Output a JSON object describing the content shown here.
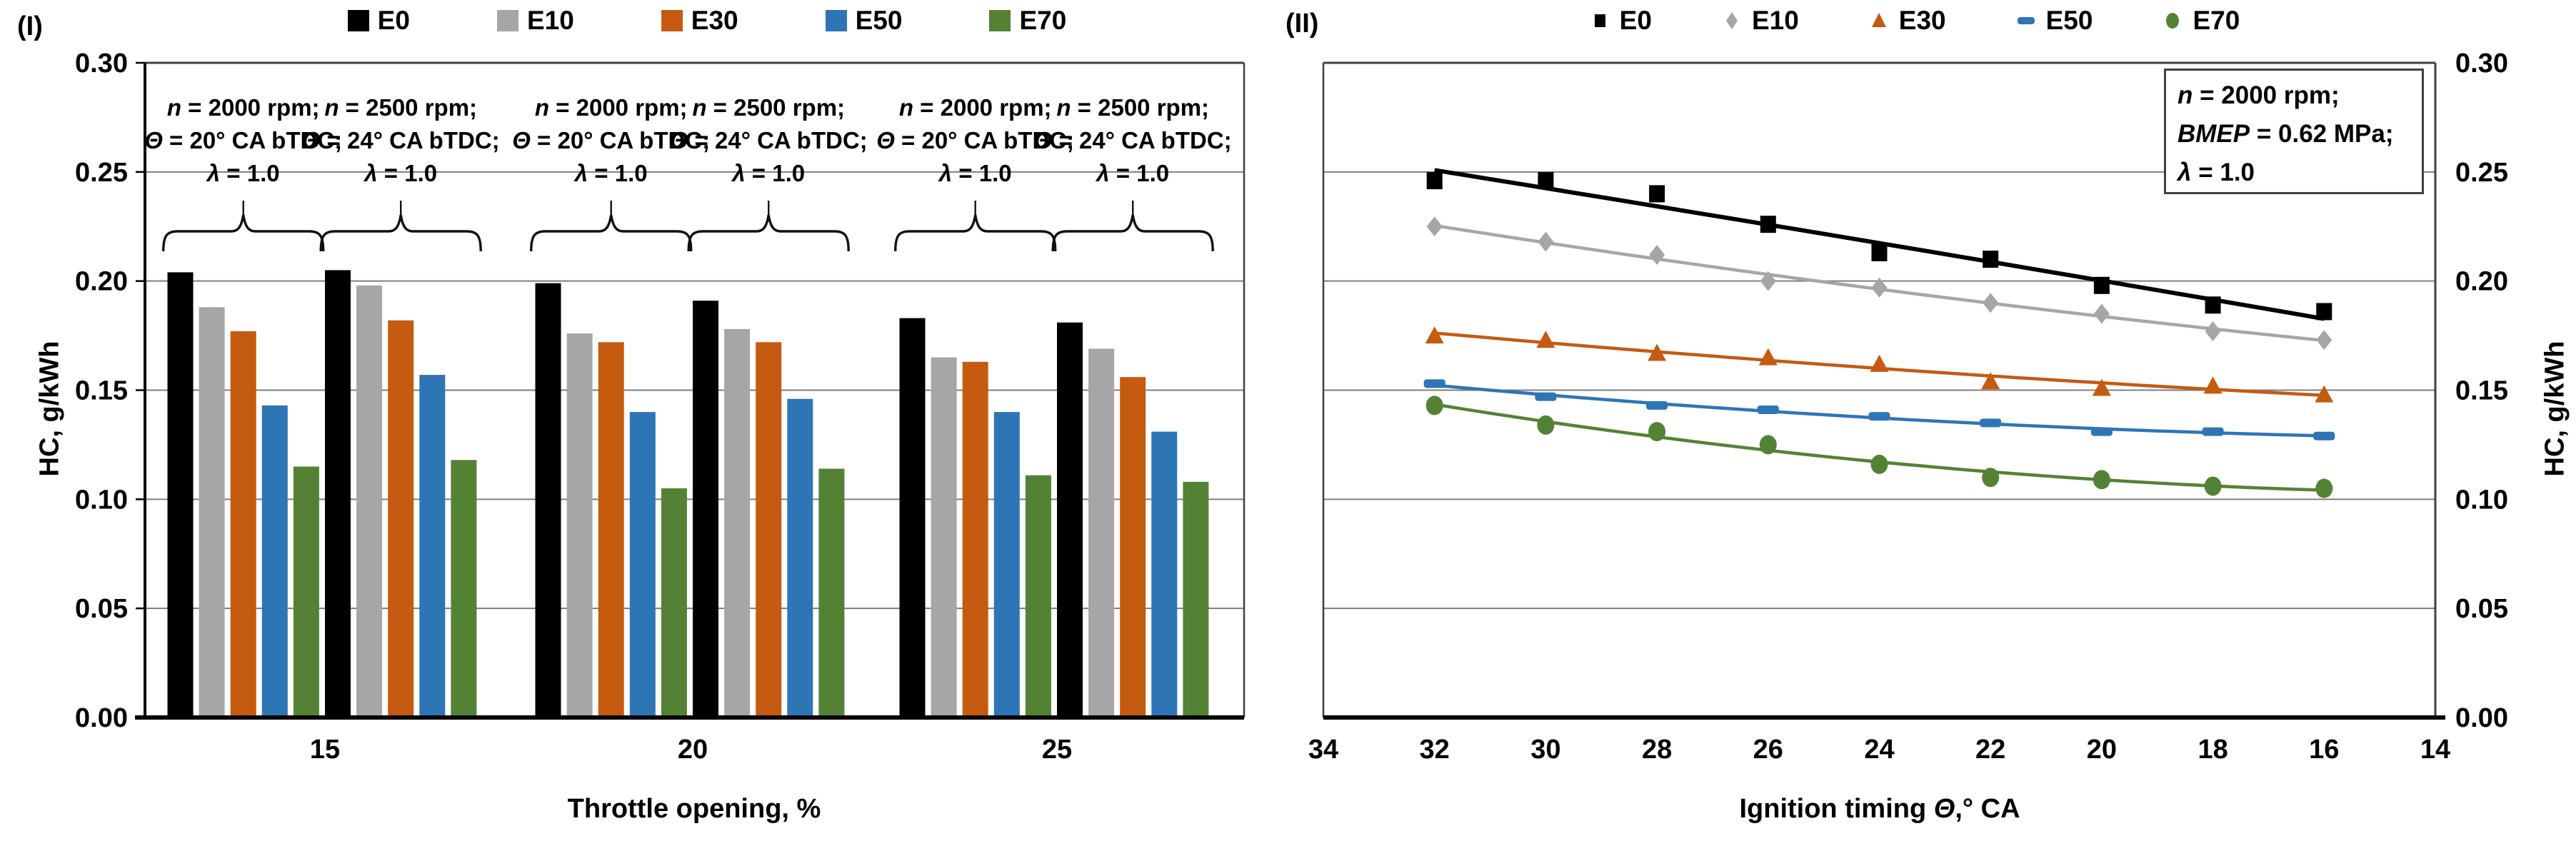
{
  "panel1": {
    "label": "(I)",
    "y_axis": {
      "title": "HC, g/kWh"
    },
    "x_axis": {
      "title": "Throttle opening, %"
    },
    "annotations": [
      {
        "l1v": "n",
        "l1r": " = 2000 rpm;",
        "l2v": "Θ",
        "l2r": " = 20° CA bTDC;",
        "l3v": "λ",
        "l3r": " = 1.0"
      },
      {
        "l1v": "n",
        "l1r": " = 2500 rpm;",
        "l2v": "Θ",
        "l2r": " = 24° CA bTDC;",
        "l3v": "λ",
        "l3r": " = 1.0"
      },
      {
        "l1v": "n",
        "l1r": " = 2000 rpm;",
        "l2v": "Θ",
        "l2r": " = 20° CA bTDC;",
        "l3v": "λ",
        "l3r": " = 1.0"
      },
      {
        "l1v": "n",
        "l1r": " = 2500 rpm;",
        "l2v": "Θ",
        "l2r": " = 24° CA bTDC;",
        "l3v": "λ",
        "l3r": " = 1.0"
      },
      {
        "l1v": "n",
        "l1r": " = 2000 rpm;",
        "l2v": "Θ",
        "l2r": " = 20° CA bTDC;",
        "l3v": "λ",
        "l3r": " = 1.0"
      },
      {
        "l1v": "n",
        "l1r": " = 2500 rpm;",
        "l2v": "Θ",
        "l2r": " = 24° CA bTDC;",
        "l3v": "λ",
        "l3r": " = 1.0"
      }
    ]
  },
  "panel2": {
    "label": "(II)",
    "y_axis": {
      "title": "HC, g/kWh"
    },
    "x_axis": {
      "title_pre": "Ignition timing ",
      "title_var": "Θ",
      "title_post": ",° CA"
    },
    "info_box": [
      {
        "v": "n",
        "r": " = 2000 rpm;"
      },
      {
        "v": "BMEP",
        "r": " = 0.62 MPa;"
      },
      {
        "v": "λ",
        "r": " = 1.0"
      }
    ]
  },
  "chart_data": [
    {
      "type": "bar",
      "panel": "(I)",
      "xlabel": "Throttle opening, %",
      "ylabel": "HC, g/kWh",
      "ylim": [
        0,
        0.3
      ],
      "y_ticks": [
        "0.30",
        "0.25",
        "0.20",
        "0.15",
        "0.10",
        "0.05",
        "0.00"
      ],
      "x_tick_labels": [
        "15",
        "20",
        "25"
      ],
      "grid": true,
      "legend_position": "top",
      "series": [
        {
          "name": "E0",
          "color": "#000000"
        },
        {
          "name": "E10",
          "color": "#A6A6A6"
        },
        {
          "name": "E30",
          "color": "#C55A11"
        },
        {
          "name": "E50",
          "color": "#2E75B6"
        },
        {
          "name": "E70",
          "color": "#548235"
        }
      ],
      "groups": [
        {
          "throttle": "15",
          "condition": "n = 2000 rpm; Θ = 20° CA bTDC; λ = 1.0",
          "values": [
            0.204,
            0.188,
            0.177,
            0.143,
            0.115
          ]
        },
        {
          "throttle": "15",
          "condition": "n = 2500 rpm; Θ = 24° CA bTDC; λ = 1.0",
          "values": [
            0.205,
            0.198,
            0.182,
            0.157,
            0.118
          ]
        },
        {
          "throttle": "20",
          "condition": "n = 2000 rpm; Θ = 20° CA bTDC; λ = 1.0",
          "values": [
            0.199,
            0.176,
            0.172,
            0.14,
            0.105
          ]
        },
        {
          "throttle": "20",
          "condition": "n = 2500 rpm; Θ = 24° CA bTDC; λ = 1.0",
          "values": [
            0.191,
            0.178,
            0.172,
            0.146,
            0.114
          ]
        },
        {
          "throttle": "25",
          "condition": "n = 2000 rpm; Θ = 20° CA bTDC; λ = 1.0",
          "values": [
            0.183,
            0.165,
            0.163,
            0.14,
            0.111
          ]
        },
        {
          "throttle": "25",
          "condition": "n = 2500 rpm; Θ = 24° CA bTDC; λ = 1.0",
          "values": [
            0.181,
            0.169,
            0.156,
            0.131,
            0.108
          ]
        }
      ]
    },
    {
      "type": "scatter",
      "panel": "(II)",
      "xlabel": "Ignition timing Θ,° CA",
      "ylabel": "HC, g/kWh",
      "xlim": [
        34,
        14
      ],
      "ylim": [
        0,
        0.3
      ],
      "x_ticks": [
        34,
        32,
        30,
        28,
        26,
        24,
        22,
        20,
        18,
        16,
        14
      ],
      "y_ticks": [
        "0.30",
        "0.25",
        "0.20",
        "0.15",
        "0.10",
        "0.05",
        "0.00"
      ],
      "x": [
        32,
        30,
        28,
        26,
        24,
        22,
        20,
        18,
        16
      ],
      "grid": true,
      "legend_position": "top",
      "trend": "quadratic",
      "annotation": "n = 2000 rpm; BMEP = 0.62 MPa; λ = 1.0",
      "series": [
        {
          "name": "E0",
          "color": "#000000",
          "marker": "square",
          "values": [
            0.246,
            0.246,
            0.24,
            0.226,
            0.213,
            0.21,
            0.198,
            0.189,
            0.186
          ]
        },
        {
          "name": "E10",
          "color": "#A6A6A6",
          "marker": "diamond",
          "values": [
            0.225,
            0.218,
            0.212,
            0.2,
            0.197,
            0.19,
            0.185,
            0.177,
            0.173
          ]
        },
        {
          "name": "E30",
          "color": "#C55A11",
          "marker": "triangle",
          "values": [
            0.175,
            0.173,
            0.167,
            0.165,
            0.162,
            0.154,
            0.151,
            0.152,
            0.148
          ]
        },
        {
          "name": "E50",
          "color": "#2E75B6",
          "marker": "dash",
          "values": [
            0.153,
            0.147,
            0.143,
            0.141,
            0.138,
            0.135,
            0.131,
            0.131,
            0.129
          ]
        },
        {
          "name": "E70",
          "color": "#548235",
          "marker": "circle",
          "values": [
            0.143,
            0.134,
            0.131,
            0.125,
            0.116,
            0.11,
            0.109,
            0.106,
            0.105
          ]
        }
      ]
    }
  ]
}
